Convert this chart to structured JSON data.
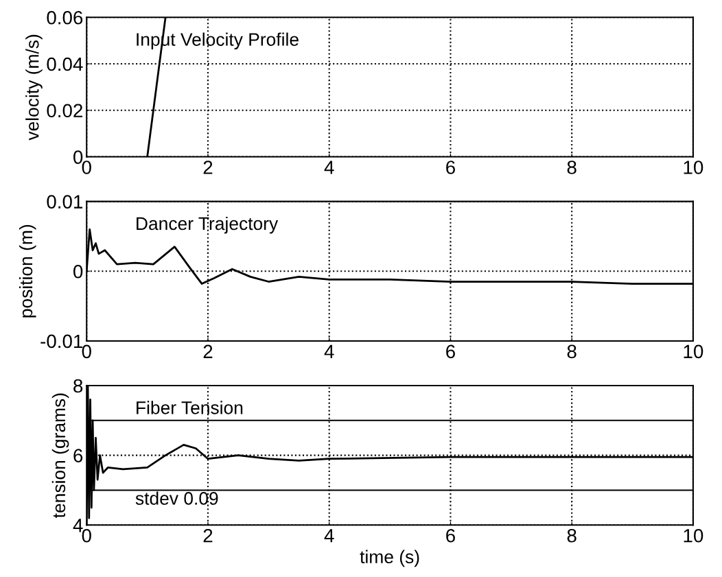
{
  "chart_data": [
    {
      "type": "line",
      "ylabel": "velocity (m/s)",
      "annotations": [
        "Input Velocity Profile"
      ],
      "xlim": [
        0,
        10
      ],
      "xticks": [
        0,
        2,
        4,
        6,
        8,
        10
      ],
      "ylim": [
        0,
        0.06
      ],
      "yticks": [
        0,
        0.02,
        0.04,
        0.06
      ],
      "grid": true,
      "line_style": "solid",
      "series": [
        {
          "color": "#000000",
          "x": [
            1,
            1.3
          ],
          "values": [
            0,
            0.06
          ]
        }
      ]
    },
    {
      "type": "line",
      "ylabel": "position (m)",
      "annotations": [
        "Dancer Trajectory"
      ],
      "xlim": [
        0,
        10
      ],
      "xticks": [
        0,
        2,
        4,
        6,
        8,
        10
      ],
      "ylim": [
        -0.01,
        0.01
      ],
      "yticks": [
        -0.01,
        0,
        0.01
      ],
      "grid": true,
      "line_style": "solid",
      "series": [
        {
          "color": "#000000",
          "x": [
            0,
            0.05,
            0.1,
            0.15,
            0.2,
            0.3,
            0.5,
            0.8,
            1.1,
            1.45,
            1.7,
            1.9,
            2.1,
            2.4,
            2.7,
            3.0,
            3.5,
            4,
            5,
            6,
            7,
            8,
            9,
            10
          ],
          "values": [
            0,
            0.006,
            0.003,
            0.004,
            0.0025,
            0.003,
            0.001,
            0.0012,
            0.001,
            0.0035,
            0.0005,
            -0.0018,
            -0.001,
            0.0003,
            -0.0008,
            -0.0015,
            -0.0008,
            -0.0012,
            -0.0012,
            -0.0015,
            -0.0015,
            -0.0015,
            -0.0018,
            -0.0018
          ]
        }
      ]
    },
    {
      "type": "line",
      "ylabel": "tension (grams)",
      "xlabel": "time (s)",
      "annotations": [
        "Fiber Tension",
        "stdev 0.09"
      ],
      "xlim": [
        0,
        10
      ],
      "xticks": [
        0,
        2,
        4,
        6,
        8,
        10
      ],
      "ylim": [
        4,
        8
      ],
      "yticks": [
        4,
        6,
        8
      ],
      "grid": true,
      "line_style": "solid",
      "ref_lines": [
        {
          "axis": "y",
          "value": 7,
          "color": "#000000",
          "line_style": "solid"
        },
        {
          "axis": "y",
          "value": 5,
          "color": "#000000",
          "line_style": "solid"
        }
      ],
      "series": [
        {
          "color": "#000000",
          "x": [
            0,
            0.02,
            0.04,
            0.06,
            0.08,
            0.1,
            0.12,
            0.15,
            0.18,
            0.22,
            0.27,
            0.35,
            0.6,
            1.0,
            1.3,
            1.6,
            1.8,
            2.0,
            2.5,
            3.0,
            3.5,
            4,
            6,
            8,
            10
          ],
          "values": [
            4,
            8,
            4.2,
            7.6,
            4.5,
            7,
            5,
            6.5,
            5.3,
            6.0,
            5.5,
            5.65,
            5.6,
            5.65,
            6.0,
            6.3,
            6.2,
            5.9,
            6.0,
            5.9,
            5.85,
            5.9,
            5.95,
            5.95,
            5.95
          ]
        }
      ]
    }
  ]
}
